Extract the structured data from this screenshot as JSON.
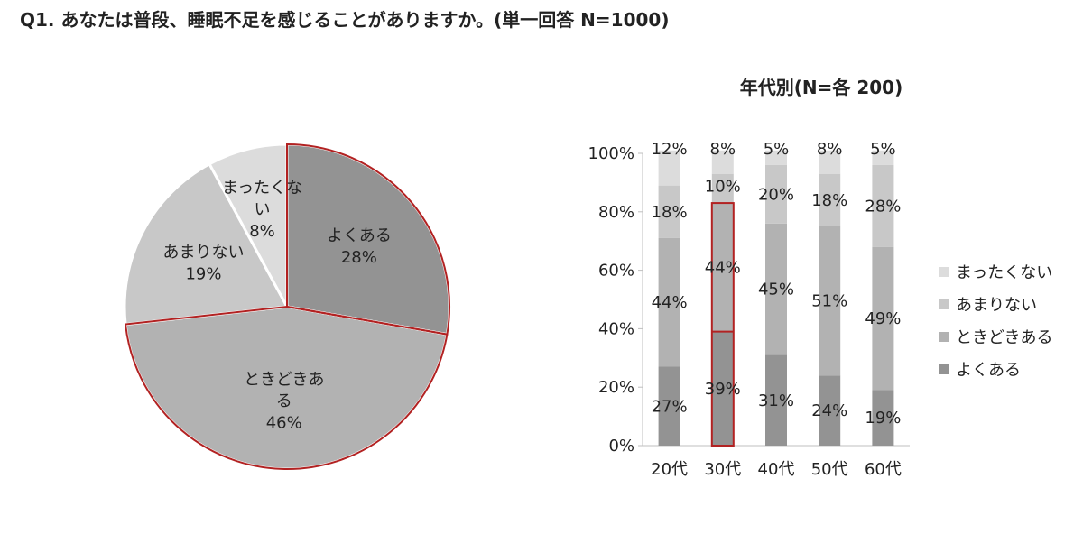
{
  "title": "Q1.  あなたは普段、睡眠不足を感じることがありますか。(単一回答   N=1000)",
  "colors": {
    "yoku": "#939393",
    "tokidoki": "#b2b2b2",
    "amari": "#c8c8c8",
    "mattaku": "#dcdcdc",
    "highlight": "#b22222",
    "axis": "#bfbfbf"
  },
  "chart_data": [
    {
      "type": "pie",
      "title": "",
      "slices": [
        {
          "name": "よくある",
          "value": 28,
          "label_lines": [
            "よくある",
            "28%"
          ],
          "color_key": "yoku",
          "highlight": true
        },
        {
          "name": "ときどきある",
          "value": 46,
          "label_lines": [
            "ときどきあ",
            "る",
            "46%"
          ],
          "color_key": "tokidoki",
          "highlight": true
        },
        {
          "name": "あまりない",
          "value": 19,
          "label_lines": [
            "あまりない",
            "19%"
          ],
          "color_key": "amari",
          "highlight": false
        },
        {
          "name": "まったくない",
          "value": 8,
          "label_lines": [
            "まったくな",
            "い",
            "8%"
          ],
          "color_key": "mattaku",
          "highlight": false
        }
      ]
    },
    {
      "type": "bar",
      "stacked": true,
      "title": "年代別(N=各 200)",
      "categories": [
        "20代",
        "30代",
        "40代",
        "50代",
        "60代"
      ],
      "ylim": [
        0,
        100
      ],
      "yticks": [
        "0%",
        "20%",
        "40%",
        "60%",
        "80%",
        "100%"
      ],
      "series": [
        {
          "name": "よくある",
          "color_key": "yoku",
          "values": [
            27,
            39,
            31,
            24,
            19
          ]
        },
        {
          "name": "ときどきある",
          "color_key": "tokidoki",
          "values": [
            44,
            44,
            45,
            51,
            49
          ]
        },
        {
          "name": "あまりない",
          "color_key": "amari",
          "values": [
            18,
            10,
            20,
            18,
            28
          ]
        },
        {
          "name": "まったくない",
          "color_key": "mattaku",
          "values": [
            12,
            8,
            5,
            8,
            5
          ]
        }
      ],
      "highlight_category": "30代",
      "legend": [
        "まったくない",
        "あまりない",
        "ときどきある",
        "よくある"
      ],
      "legend_position": "right"
    }
  ]
}
